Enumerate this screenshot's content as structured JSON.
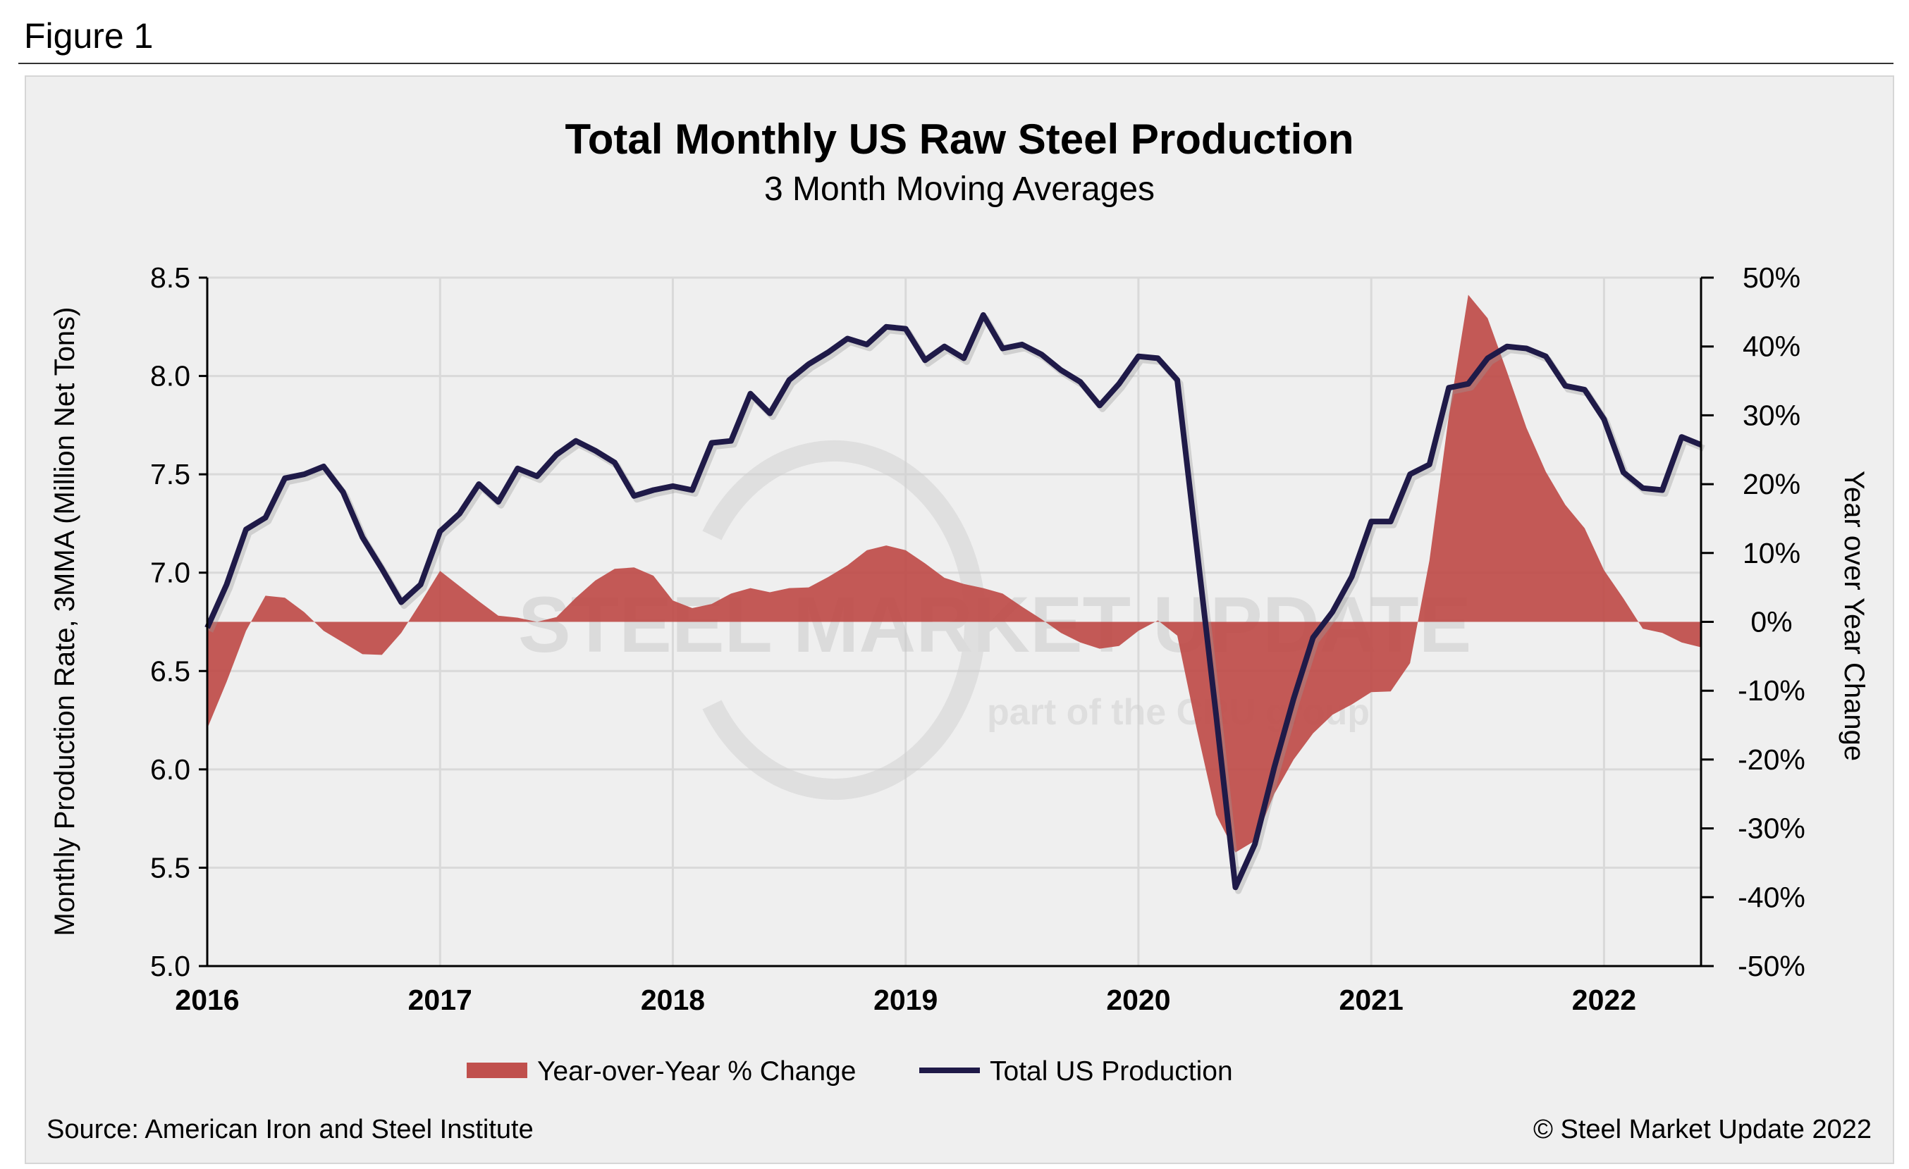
{
  "figure_label": "Figure 1",
  "source": "Source: American Iron and Steel Institute",
  "copyright": "© Steel Market Update 2022",
  "watermark": {
    "brand": "STEEL MARKET UPDATE",
    "tagline_pre": "part of the",
    "tagline_logo": "CRU",
    "tagline_post": "group"
  },
  "colors": {
    "yoy_fill": "#c0504d",
    "production_line": "#1f1a48",
    "background": "#efefef",
    "grid": "#d9d9d9"
  },
  "chart_data": {
    "type": "line+area",
    "title": "Total Monthly US Raw Steel Production",
    "subtitle": "3 Month Moving Averages",
    "ylabel": "Monthly Production Rate, 3MMA (Million Net Tons)",
    "y2label": "Year over Year Change",
    "ylim": [
      5.0,
      8.5
    ],
    "y2lim": [
      -50,
      50
    ],
    "yticks": [
      "5.0",
      "5.5",
      "6.0",
      "6.5",
      "7.0",
      "7.5",
      "8.0",
      "8.5"
    ],
    "y2ticks": [
      "-50%",
      "-40%",
      "-30%",
      "-20%",
      "-10%",
      "0%",
      "10%",
      "20%",
      "30%",
      "40%",
      "50%"
    ],
    "xticks": [
      "2016",
      "2017",
      "2018",
      "2019",
      "2020",
      "2021",
      "2022"
    ],
    "grid": true,
    "legend_position": "bottom",
    "start_month": "2016-01",
    "series": [
      {
        "name": "Year-over-Year % Change",
        "type": "area",
        "axis": "right",
        "unit": "%",
        "values": [
          -15.5,
          -8.7,
          -1.3,
          3.8,
          3.5,
          1.4,
          -1.3,
          -3.0,
          -4.7,
          -4.8,
          -1.6,
          2.8,
          7.4,
          5.2,
          3.0,
          0.9,
          0.6,
          0.0,
          0.7,
          3.5,
          6.0,
          7.7,
          7.9,
          6.7,
          3.1,
          2.0,
          2.6,
          4.1,
          4.9,
          4.3,
          4.9,
          5.0,
          6.5,
          8.2,
          10.4,
          11.1,
          10.4,
          8.5,
          6.4,
          5.5,
          4.9,
          4.1,
          2.2,
          0.4,
          -1.6,
          -3.0,
          -3.9,
          -3.5,
          -1.3,
          0.2,
          -2.0,
          -15.5,
          -28.0,
          -33.5,
          -31.8,
          -25.0,
          -20.0,
          -16.2,
          -13.5,
          -12.0,
          -10.2,
          -10.1,
          -6.0,
          8.9,
          29.9,
          47.5,
          44.1,
          36.3,
          28.2,
          21.8,
          17.0,
          13.6,
          7.5,
          3.4,
          -1.0,
          -1.6,
          -3.0,
          -3.7
        ]
      },
      {
        "name": "Total US Production",
        "type": "line",
        "axis": "left",
        "unit": "million net tons",
        "values": [
          6.72,
          6.94,
          7.22,
          7.28,
          7.48,
          7.5,
          7.54,
          7.41,
          7.18,
          7.02,
          6.85,
          6.94,
          7.21,
          7.3,
          7.45,
          7.36,
          7.53,
          7.49,
          7.6,
          7.67,
          7.62,
          7.56,
          7.39,
          7.42,
          7.44,
          7.42,
          7.66,
          7.67,
          7.91,
          7.81,
          7.98,
          8.06,
          8.12,
          8.19,
          8.16,
          8.25,
          8.24,
          8.08,
          8.15,
          8.09,
          8.31,
          8.14,
          8.16,
          8.11,
          8.03,
          7.97,
          7.85,
          7.96,
          8.1,
          8.09,
          7.98,
          7.13,
          6.28,
          5.4,
          5.62,
          6.01,
          6.36,
          6.67,
          6.8,
          6.98,
          7.26,
          7.26,
          7.5,
          7.55,
          7.94,
          7.96,
          8.09,
          8.15,
          8.14,
          8.1,
          7.95,
          7.93,
          7.78,
          7.51,
          7.43,
          7.42,
          7.69,
          7.65
        ]
      }
    ]
  }
}
